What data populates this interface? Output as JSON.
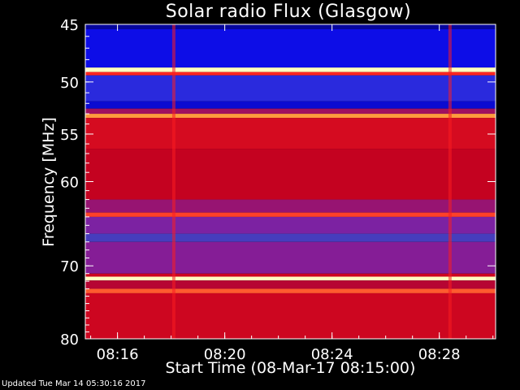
{
  "chart_data": {
    "type": "heatmap",
    "title": "Solar radio Flux (Glasgow)",
    "xlabel": "Start Time (08-Mar-17 08:15:00)",
    "ylabel": "Frequency [MHz]",
    "footer": "Updated Tue Mar 14 05:30:16 2017",
    "x_ticks": [
      "08:16",
      "08:20",
      "08:24",
      "08:28"
    ],
    "x_tick_minutes": [
      16,
      20,
      24,
      28
    ],
    "xlim_minutes": [
      14.8,
      30.1
    ],
    "y_ticks": [
      45,
      50,
      55,
      60,
      70,
      80
    ],
    "ylim": [
      45,
      80
    ],
    "yscale": "log",
    "colormap": [
      "#000066",
      "#1010ff",
      "#4040c0",
      "#8020a0",
      "#c00020",
      "#ff2020",
      "#ffa040",
      "#ffffc0"
    ],
    "bands": [
      {
        "f0": 45.0,
        "f1": 45.4,
        "level": 0.05
      },
      {
        "f0": 45.4,
        "f1": 48.7,
        "level": 0.12
      },
      {
        "f0": 48.7,
        "f1": 49.1,
        "level": 1.0
      },
      {
        "f0": 49.1,
        "f1": 49.4,
        "level": 0.72
      },
      {
        "f0": 49.4,
        "f1": 51.8,
        "level": 0.22
      },
      {
        "f0": 51.8,
        "f1": 52.5,
        "level": 0.1
      },
      {
        "f0": 52.5,
        "f1": 53.0,
        "level": 0.5
      },
      {
        "f0": 53.0,
        "f1": 53.4,
        "level": 0.85
      },
      {
        "f0": 53.4,
        "f1": 56.5,
        "level": 0.62
      },
      {
        "f0": 56.5,
        "f1": 62.0,
        "level": 0.58
      },
      {
        "f0": 62.0,
        "f1": 63.5,
        "level": 0.48
      },
      {
        "f0": 63.5,
        "f1": 64.0,
        "level": 0.75
      },
      {
        "f0": 64.0,
        "f1": 66.0,
        "level": 0.42
      },
      {
        "f0": 66.0,
        "f1": 67.0,
        "level": 0.3
      },
      {
        "f0": 67.0,
        "f1": 71.0,
        "level": 0.44
      },
      {
        "f0": 71.0,
        "f1": 71.4,
        "level": 0.6
      },
      {
        "f0": 71.4,
        "f1": 71.9,
        "level": 1.0
      },
      {
        "f0": 71.9,
        "f1": 73.0,
        "level": 0.55
      },
      {
        "f0": 73.0,
        "f1": 73.6,
        "level": 0.78
      },
      {
        "f0": 73.6,
        "f1": 80.0,
        "level": 0.6
      }
    ],
    "vertical_features_minutes": [
      18.1,
      28.4
    ]
  }
}
